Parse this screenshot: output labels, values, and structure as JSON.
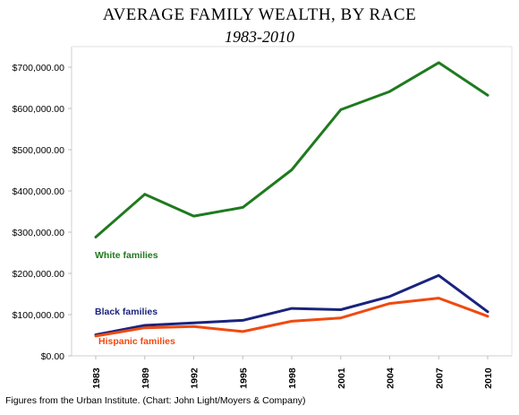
{
  "chart_data": {
    "type": "line",
    "title": "AVERAGE FAMILY WEALTH, BY RACE",
    "subtitle": "1983-2010",
    "categories": [
      "1983",
      "1989",
      "1992",
      "1995",
      "1998",
      "2001",
      "2004",
      "2007",
      "2010"
    ],
    "ylim": [
      0,
      750000
    ],
    "yticks": [
      "$0.00",
      "$100,000.00",
      "$200,000.00",
      "$300,000.00",
      "$400,000.00",
      "$500,000.00",
      "$600,000.00",
      "$700,000.00"
    ],
    "grid": false,
    "series": [
      {
        "name": "White families",
        "color": "#1f7a1f",
        "values": [
          288000,
          392000,
          339000,
          360000,
          451000,
          597000,
          641000,
          711000,
          632000
        ]
      },
      {
        "name": "Black families",
        "color": "#1a237e",
        "values": [
          51000,
          74000,
          80000,
          86000,
          115000,
          112000,
          144000,
          195000,
          107000
        ]
      },
      {
        "name": "Hispanic families",
        "color": "#f04a10",
        "values": [
          48000,
          68000,
          71000,
          59000,
          84000,
          92000,
          127000,
          140000,
          96000
        ]
      }
    ],
    "footnote": "Figures from the Urban Institute. (Chart: John Light/Moyers & Company)"
  }
}
